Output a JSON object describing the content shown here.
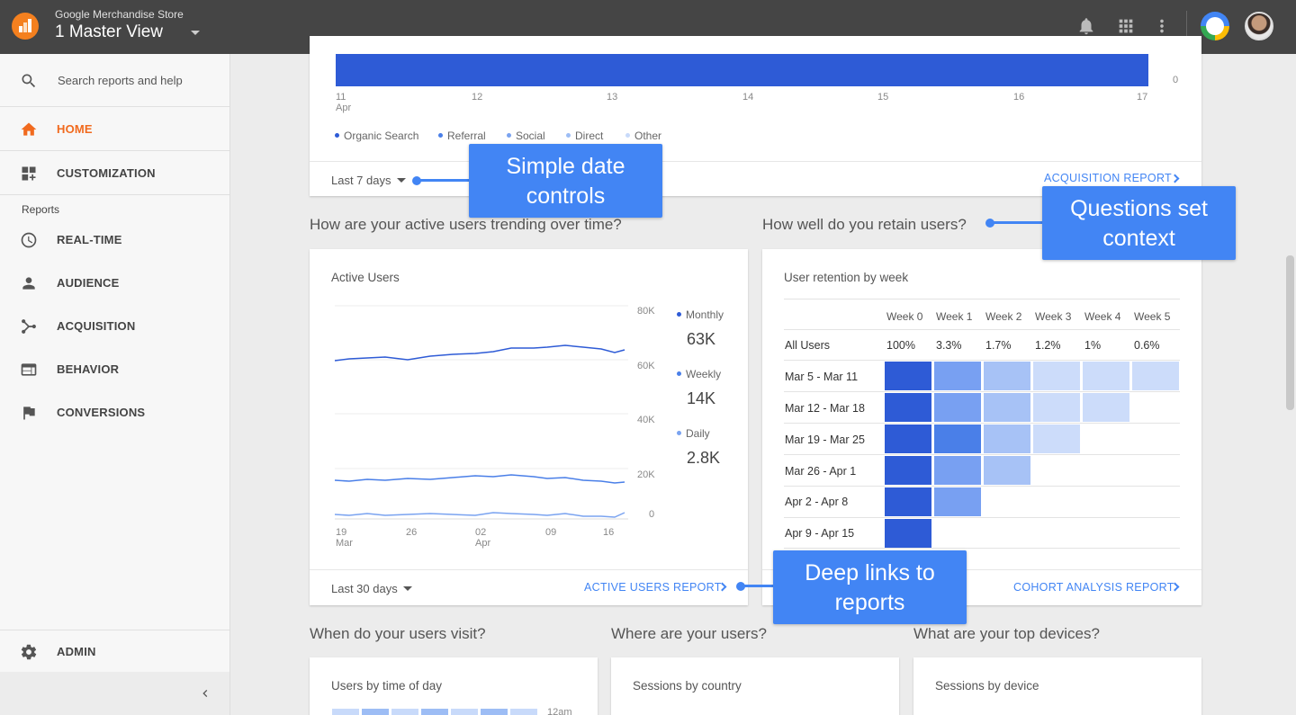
{
  "header": {
    "account": "Google Merchandise Store",
    "view": "1 Master View"
  },
  "sidebar": {
    "search_placeholder": "Search reports and help",
    "home": "HOME",
    "customization": "CUSTOMIZATION",
    "reports_label": "Reports",
    "items": [
      "REAL-TIME",
      "AUDIENCE",
      "ACQUISITION",
      "BEHAVIOR",
      "CONVERSIONS"
    ],
    "admin": "ADMIN"
  },
  "acquisition_card": {
    "x_ticks": [
      "11",
      "12",
      "13",
      "14",
      "15",
      "16",
      "17"
    ],
    "x_month": "Apr",
    "y_tick_zero": "0",
    "legend": [
      {
        "name": "Organic Search",
        "color": "#2e5bd6"
      },
      {
        "name": "Referral",
        "color": "#4a7fe8"
      },
      {
        "name": "Social",
        "color": "#7aa3f0"
      },
      {
        "name": "Direct",
        "color": "#9dbdf5"
      },
      {
        "name": "Other",
        "color": "#c8dafa"
      }
    ],
    "date_range": "Last 7 days",
    "report_link": "ACQUISITION REPORT"
  },
  "active_users": {
    "question": "How are your active users trending over time?",
    "title": "Active Users",
    "y_ticks": [
      "80K",
      "60K",
      "40K",
      "20K",
      "0"
    ],
    "x_ticks": [
      "19",
      "26",
      "02",
      "09",
      "16"
    ],
    "x_months": [
      "Mar",
      "Apr"
    ],
    "metrics": [
      {
        "name": "Monthly",
        "value": "63K",
        "color": "#2e5bd6"
      },
      {
        "name": "Weekly",
        "value": "14K",
        "color": "#4a7fe8"
      },
      {
        "name": "Daily",
        "value": "2.8K",
        "color": "#7aa3f0"
      }
    ],
    "date_range": "Last 30 days",
    "report_link": "ACTIVE USERS REPORT"
  },
  "retention": {
    "question": "How well do you retain users?",
    "title": "User retention by week",
    "weeks": [
      "Week 0",
      "Week 1",
      "Week 2",
      "Week 3",
      "Week 4",
      "Week 5"
    ],
    "all_users_label": "All Users",
    "all_users": [
      "100%",
      "3.3%",
      "1.7%",
      "1.2%",
      "1%",
      "0.6%"
    ],
    "rows": [
      "Mar 5 - Mar 11",
      "Mar 12 - Mar 18",
      "Mar 19 - Mar 25",
      "Mar 26 - Apr 1",
      "Apr 2 - Apr 8",
      "Apr 9 - Apr 15"
    ],
    "report_link": "COHORT ANALYSIS REPORT"
  },
  "bottom": {
    "q1": "When do your users visit?",
    "q2": "Where are your users?",
    "q3": "What are your top devices?",
    "t1": "Users by time of day",
    "t2": "Sessions by country",
    "t3": "Sessions by device",
    "time_label": "12am"
  },
  "callouts": {
    "date_controls": [
      "Simple date",
      "controls"
    ],
    "questions": [
      "Questions set",
      "context"
    ],
    "deep_links": [
      "Deep links to",
      "reports"
    ]
  },
  "colors": {
    "accent": "#4285f4",
    "active_nav": "#f16a1e",
    "topbar": "#454545"
  }
}
